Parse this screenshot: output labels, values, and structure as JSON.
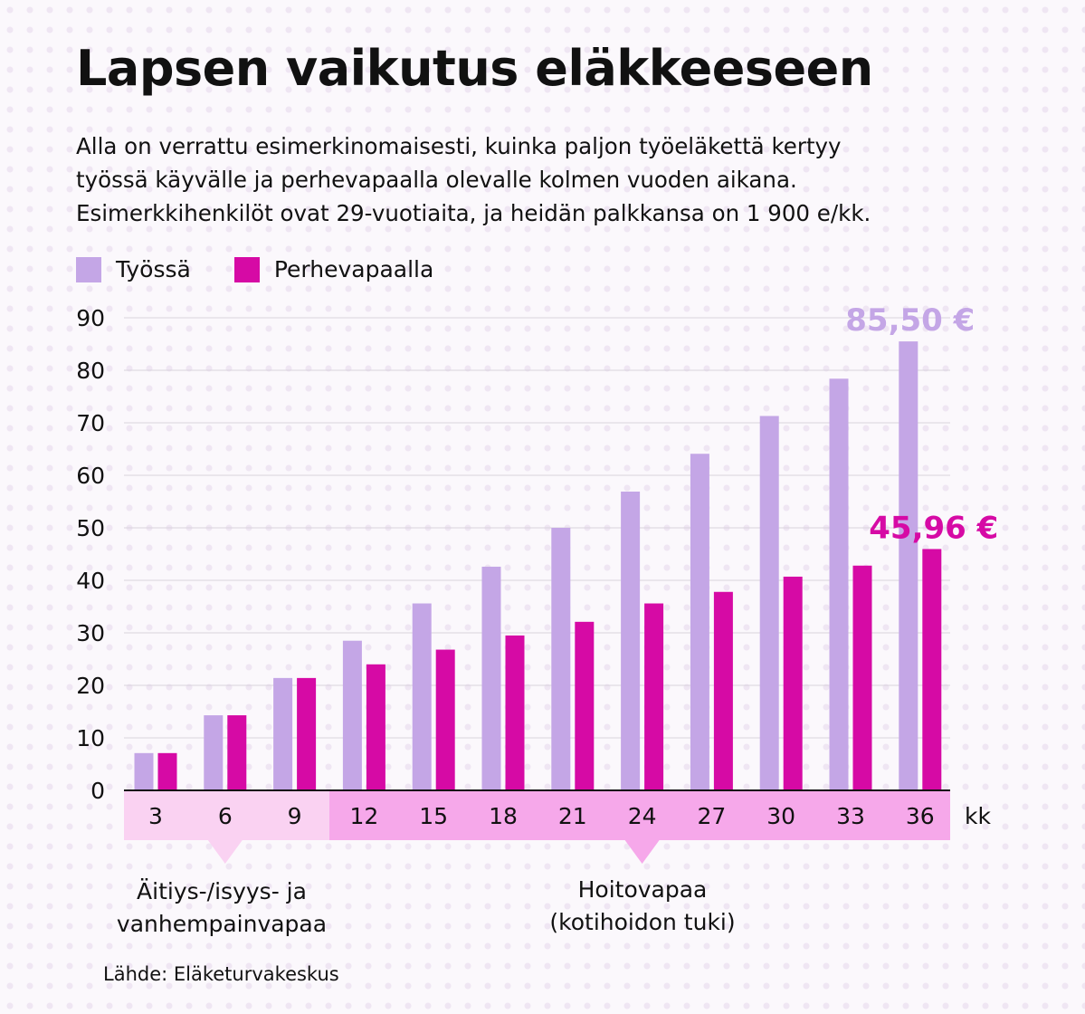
{
  "title": "Lapsen vaikutus eläkkeeseen",
  "subtitle_lines": [
    "Alla on verrattu esimerkinomaisesti, kuinka paljon työeläkettä kertyy",
    "työssä käyvälle ja perhevapaalla olevalle kolmen vuoden aikana.",
    "Esimerkkihenkilöt ovat 29-vuotiaita, ja heidän palkkansa on 1 900 e/kk."
  ],
  "legend": [
    {
      "label": "Työssä",
      "color": "#c4a6e6"
    },
    {
      "label": "Perhevapaalla",
      "color": "#d60aa5"
    }
  ],
  "annotations": {
    "left_period": [
      "Äitiys-/isyys- ja",
      "vanhempainvapaa"
    ],
    "right_period": [
      "Hoitovapaa",
      "(kotihoidon tuki)"
    ]
  },
  "source": "Lähde: Eläketurvakeskus",
  "chart_data": {
    "type": "bar",
    "categories": [
      "3",
      "6",
      "9",
      "12",
      "15",
      "18",
      "21",
      "24",
      "27",
      "30",
      "33",
      "36"
    ],
    "xunit": "kk",
    "yticks": [
      "0",
      "10",
      "20",
      "30",
      "40",
      "50",
      "60",
      "70",
      "80",
      "90"
    ],
    "ylim": [
      0,
      90
    ],
    "grid": true,
    "series": [
      {
        "name": "Työssä",
        "color": "#c4a6e6",
        "values": [
          7.1,
          14.3,
          21.4,
          28.5,
          35.6,
          42.6,
          50.0,
          56.9,
          64.1,
          71.3,
          78.4,
          85.5
        ]
      },
      {
        "name": "Perhevapaalla",
        "color": "#d60aa5",
        "values": [
          7.1,
          14.3,
          21.4,
          24.0,
          26.8,
          29.5,
          32.1,
          35.6,
          37.8,
          40.7,
          42.8,
          45.96
        ]
      }
    ],
    "end_labels": [
      {
        "series": "Työssä",
        "text": "85,50 €"
      },
      {
        "series": "Perhevapaalla",
        "text": "45,96 €"
      }
    ],
    "periods": [
      {
        "name": "left_period",
        "from": "3",
        "to": "9",
        "band_color": "#fad2f2",
        "pointer_at": "6"
      },
      {
        "name": "right_period",
        "from": "12",
        "to": "36",
        "band_color": "#f6a8ea",
        "pointer_at": "24"
      }
    ]
  }
}
